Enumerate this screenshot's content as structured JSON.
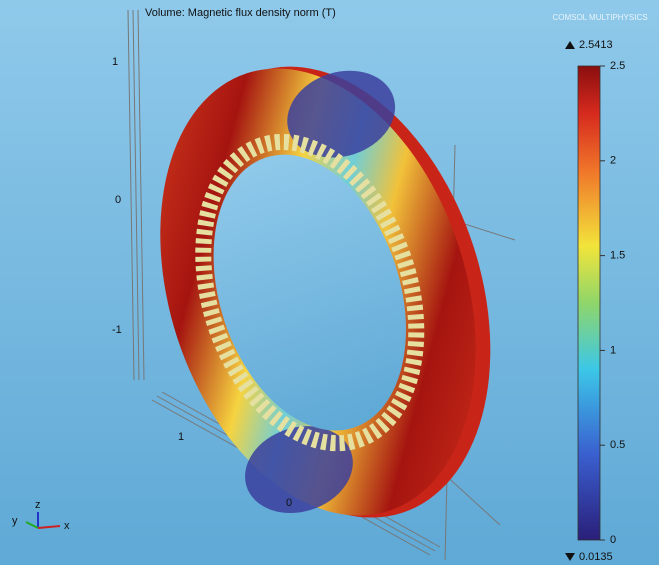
{
  "plot": {
    "title": "Volume: Magnetic flux density norm (T)",
    "logo": "COMSOL MULTIPHYSICS",
    "z_ticks": [
      "1",
      "0",
      "-1"
    ],
    "x_ticks": [
      "1",
      "0"
    ],
    "triad": [
      "y",
      "z",
      "x"
    ]
  },
  "colorbar": {
    "max_label": "2.5413",
    "min_label": "0.0135",
    "range": [
      0,
      2.5
    ],
    "ticks": [
      0,
      0.5,
      1,
      1.5,
      2,
      2.5
    ]
  }
}
